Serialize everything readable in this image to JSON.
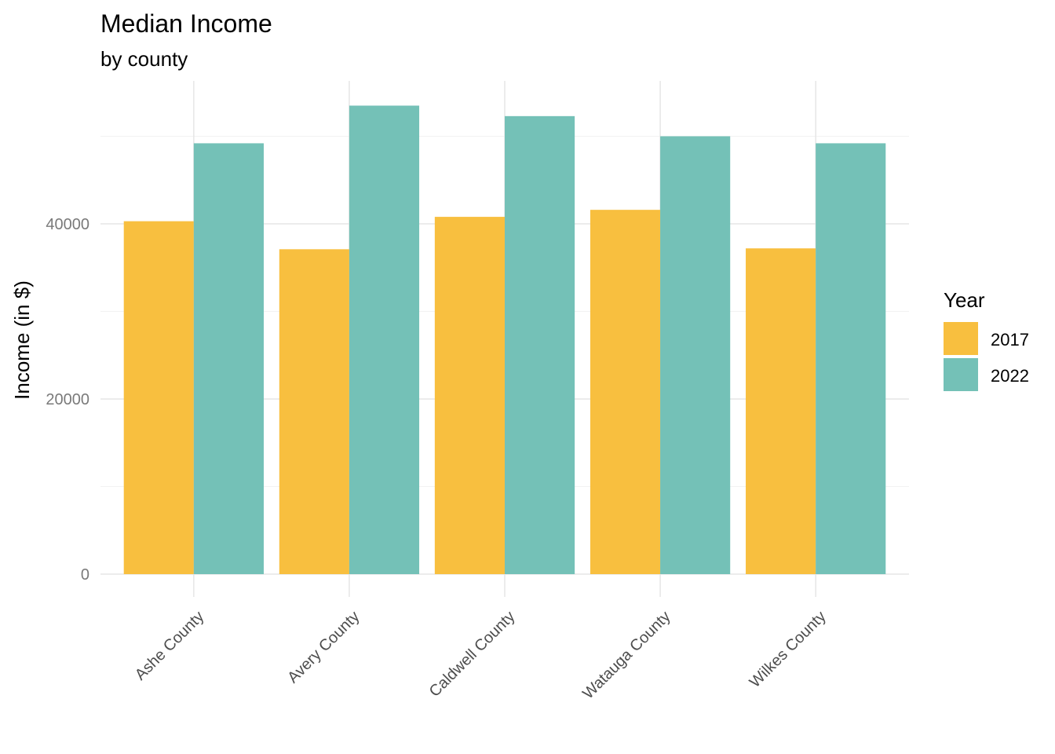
{
  "chart_data": {
    "type": "bar",
    "title": "Median Income",
    "subtitle": "by county",
    "xlabel": "",
    "ylabel": "Income (in $)",
    "categories": [
      "Ashe County",
      "Avery County",
      "Caldwell County",
      "Watauga County",
      "Wilkes County"
    ],
    "series": [
      {
        "name": "2017",
        "color": "#F8BF3F",
        "values": [
          40300,
          37100,
          40800,
          41600,
          37200
        ]
      },
      {
        "name": "2022",
        "color": "#74C1B7",
        "values": [
          49200,
          53500,
          52300,
          50000,
          49200
        ]
      }
    ],
    "ylim": [
      0,
      55000
    ],
    "yticks": [
      0,
      20000,
      40000
    ],
    "ytick_labels": [
      "0",
      "20000",
      "40000"
    ],
    "grid": true,
    "legend": {
      "title": "Year",
      "position": "right",
      "entries": [
        "2017",
        "2022"
      ]
    }
  }
}
